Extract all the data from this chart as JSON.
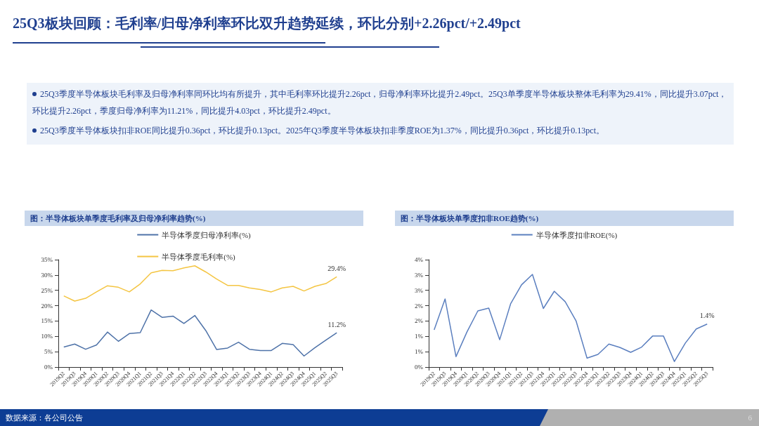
{
  "chart_data": [
    {
      "type": "other",
      "title": "25Q3板块回顾：毛利率/归母净利率环比双升趋势延续，环比分别+2.26pct/+2.49pct",
      "annotations": [
        "25Q3季度半导体板块毛利率及归母净利率同环比均有所提升，其中毛利率环比提升2.26pct，归母净利率环比提升2.49pct。25Q3单季度半导体板块整体毛利率为29.41%，同比提升3.07pct，环比提升2.26pct，季度归母净利率为11.21%，同比提升4.03pct，环比提升2.49pct。",
        "25Q3季度半导体板块扣非ROE同比提升0.36pct，环比提升0.13pct。2025年Q3季度半导体板块扣非季度ROE为1.37%，同比提升0.36pct，环比提升0.13pct。",
        "数据来源：各公司公告",
        "6"
      ]
    },
    {
      "type": "line",
      "title": "图：半导体板块单季度毛利率及归母净利率趋势(%)",
      "legend": "top",
      "grid": false,
      "marker": "none",
      "categories": [
        "2019Q2",
        "2019Q3",
        "2019Q4",
        "2020Q1",
        "2020Q2",
        "2020Q3",
        "2020Q4",
        "2021Q1",
        "2021Q2",
        "2021Q3",
        "2021Q4",
        "2022Q1",
        "2022Q2",
        "2022Q3",
        "2022Q4",
        "2023Q1",
        "2023Q2",
        "2023Q3",
        "2023Q4",
        "2024Q1",
        "2024Q2",
        "2024Q3",
        "2024Q4",
        "2025Q1",
        "2025Q2",
        "2025Q3"
      ],
      "ylim": [
        0,
        35
      ],
      "yticks": [
        {
          "value": 0,
          "label": "0%"
        },
        {
          "value": 5,
          "label": "5%"
        },
        {
          "value": 10,
          "label": "10%"
        },
        {
          "value": 15,
          "label": "15%"
        },
        {
          "value": 20,
          "label": "20%"
        },
        {
          "value": 25,
          "label": "25%"
        },
        {
          "value": 30,
          "label": "30%"
        },
        {
          "value": 35,
          "label": "35%"
        }
      ],
      "series": [
        {
          "name": "半导体季度归母净利率(%)",
          "color": "#4e72a8",
          "values": [
            6.5,
            7.5,
            5.8,
            7.2,
            11.4,
            8.4,
            10.9,
            11.2,
            18.6,
            16.2,
            16.6,
            14.2,
            16.8,
            11.9,
            5.7,
            6.2,
            8.1,
            5.8,
            5.4,
            5.4,
            7.7,
            7.3,
            3.6,
            6.3,
            8.8,
            11.2
          ]
        },
        {
          "name": "半导体季度毛利率(%)",
          "color": "#f4c542",
          "values": [
            23.2,
            21.5,
            22.4,
            24.5,
            26.5,
            26.0,
            24.5,
            27.1,
            30.7,
            31.5,
            31.4,
            32.3,
            33.0,
            31.0,
            28.7,
            26.6,
            26.6,
            25.8,
            25.3,
            24.5,
            25.8,
            26.3,
            24.8,
            26.3,
            27.2,
            29.4
          ]
        }
      ],
      "annotations": [
        {
          "text": "29.4%",
          "x": "2025Q3",
          "y": 29.4
        },
        {
          "text": "11.2%",
          "x": "2025Q3",
          "y": 11.2
        }
      ]
    },
    {
      "type": "line",
      "title": "图：半导体板块单季度扣非ROE趋势(%)",
      "legend": "top",
      "grid": false,
      "marker": "none",
      "categories": [
        "2019Q2",
        "2019Q3",
        "2019Q4",
        "2020Q1",
        "2020Q2",
        "2020Q3",
        "2020Q4",
        "2021Q1",
        "2021Q2",
        "2021Q3",
        "2021Q4",
        "2022Q1",
        "2022Q2",
        "2022Q3",
        "2022Q4",
        "2023Q1",
        "2023Q2",
        "2023Q3",
        "2023Q4",
        "2024Q1",
        "2024Q2",
        "2024Q3",
        "2024Q4",
        "2025Q1",
        "2025Q2",
        "2025Q3"
      ],
      "ylim": [
        0,
        3.5
      ],
      "yticks": [
        {
          "value": 0,
          "label": "0%"
        },
        {
          "value": 0.5,
          "label": "1%"
        },
        {
          "value": 1,
          "label": "1%"
        },
        {
          "value": 1.5,
          "label": "2%"
        },
        {
          "value": 2,
          "label": "2%"
        },
        {
          "value": 2.5,
          "label": "3%"
        },
        {
          "value": 3,
          "label": "3%"
        },
        {
          "value": 3.5,
          "label": "4%"
        }
      ],
      "series": [
        {
          "name": "半导体季度扣非ROE(%)",
          "color": "#5b7fbf",
          "values": [
            1.21,
            2.22,
            0.34,
            1.14,
            1.83,
            1.92,
            0.89,
            2.06,
            2.68,
            3.02,
            1.91,
            2.47,
            2.13,
            1.5,
            0.29,
            0.41,
            0.75,
            0.64,
            0.48,
            0.65,
            1.01,
            1.01,
            0.18,
            0.78,
            1.24,
            1.4
          ]
        }
      ],
      "annotations": [
        {
          "text": "1.4%",
          "x": "2025Q3",
          "y": 1.4
        }
      ]
    }
  ]
}
